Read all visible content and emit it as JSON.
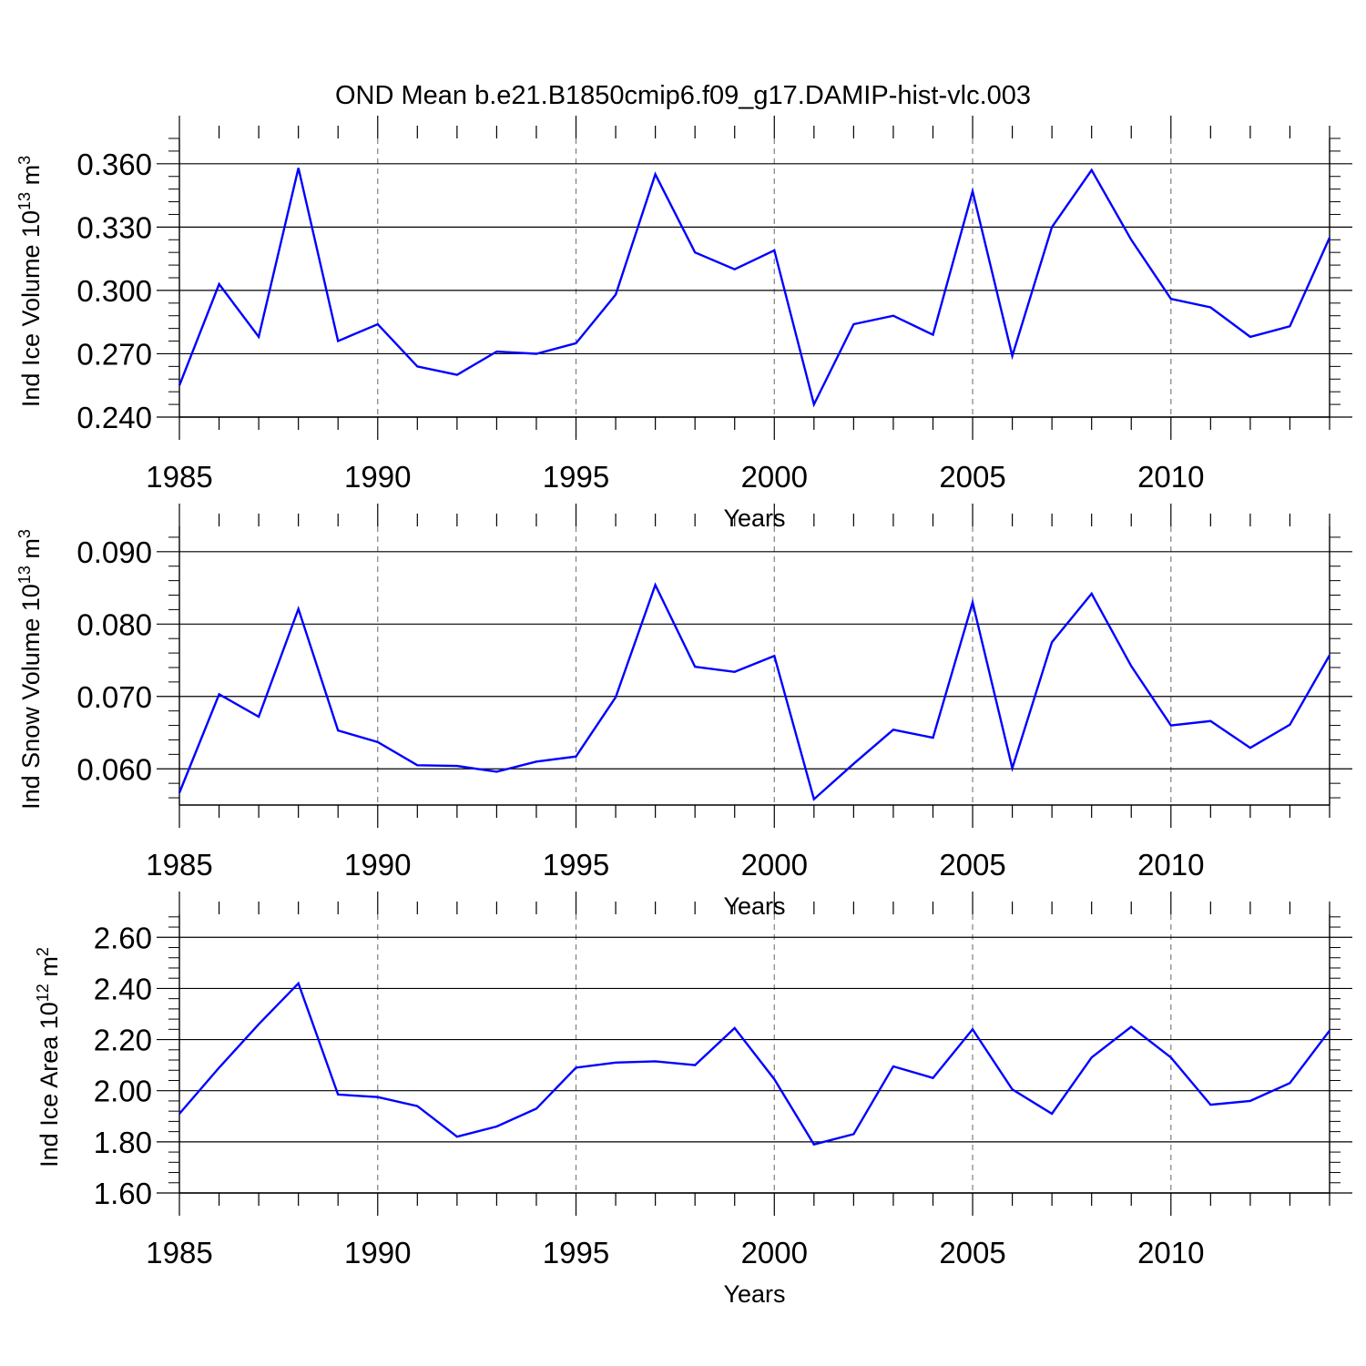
{
  "title": "OND Mean b.e21.B1850cmip6.f09_g17.DAMIP-hist-vlc.003",
  "colors": {
    "line": "#0000ff",
    "axis": "#000000",
    "grid": "#7f7f7f"
  },
  "chart_data": [
    {
      "type": "line",
      "title": "OND Mean b.e21.B1850cmip6.f09_g17.DAMIP-hist-vlc.003",
      "xlabel": "Years",
      "ylabel_main": "Ind Ice Volume 10",
      "ylabel_exp": "13",
      "ylabel_unit": " m",
      "ylabel_unit_exp": "3",
      "xlim": [
        1985,
        2014
      ],
      "ylim": [
        0.24,
        0.372
      ],
      "x_ticks": [
        1985,
        1990,
        1995,
        2000,
        2005,
        2010
      ],
      "x_tick_labels": [
        "1985",
        "1990",
        "1995",
        "2000",
        "2005",
        "2010"
      ],
      "y_ticks": [
        0.24,
        0.27,
        0.3,
        0.33,
        0.36
      ],
      "y_tick_labels": [
        "0.240",
        "0.270",
        "0.300",
        "0.330",
        "0.360"
      ],
      "grid": "dashed vertical at major x ticks",
      "series": [
        {
          "name": "Ind Ice Volume",
          "x": [
            1985,
            1986,
            1987,
            1988,
            1989,
            1990,
            1991,
            1992,
            1993,
            1994,
            1995,
            1996,
            1997,
            1998,
            1999,
            2000,
            2001,
            2002,
            2003,
            2004,
            2005,
            2006,
            2007,
            2008,
            2009,
            2010,
            2011,
            2012,
            2013,
            2014
          ],
          "values": [
            0.255,
            0.303,
            0.278,
            0.358,
            0.276,
            0.284,
            0.264,
            0.26,
            0.271,
            0.27,
            0.275,
            0.298,
            0.355,
            0.318,
            0.31,
            0.319,
            0.246,
            0.284,
            0.288,
            0.279,
            0.347,
            0.269,
            0.33,
            0.357,
            0.324,
            0.296,
            0.292,
            0.278,
            0.283,
            0.325
          ]
        }
      ]
    },
    {
      "type": "line",
      "title": "",
      "xlabel": "Years",
      "ylabel_main": "Ind Snow Volume 10",
      "ylabel_exp": "13",
      "ylabel_unit": " m",
      "ylabel_unit_exp": "3",
      "xlim": [
        1985,
        2014
      ],
      "ylim": [
        0.055,
        0.0935
      ],
      "x_ticks": [
        1985,
        1990,
        1995,
        2000,
        2005,
        2010
      ],
      "x_tick_labels": [
        "1985",
        "1990",
        "1995",
        "2000",
        "2005",
        "2010"
      ],
      "y_ticks": [
        0.06,
        0.07,
        0.08,
        0.09
      ],
      "y_tick_labels": [
        "0.060",
        "0.070",
        "0.080",
        "0.090"
      ],
      "grid": "dashed vertical at major x ticks",
      "series": [
        {
          "name": "Ind Snow Volume",
          "x": [
            1985,
            1986,
            1987,
            1988,
            1989,
            1990,
            1991,
            1992,
            1993,
            1994,
            1995,
            1996,
            1997,
            1998,
            1999,
            2000,
            2001,
            2002,
            2003,
            2004,
            2005,
            2006,
            2007,
            2008,
            2009,
            2010,
            2011,
            2012,
            2013,
            2014
          ],
          "values": [
            0.0567,
            0.0703,
            0.0672,
            0.0821,
            0.0653,
            0.0637,
            0.0605,
            0.0604,
            0.0596,
            0.061,
            0.0617,
            0.0699,
            0.0854,
            0.0741,
            0.0734,
            0.0756,
            0.0558,
            0.0607,
            0.0654,
            0.0643,
            0.083,
            0.0601,
            0.0775,
            0.0842,
            0.0742,
            0.066,
            0.0666,
            0.0629,
            0.0661,
            0.0757
          ]
        }
      ]
    },
    {
      "type": "line",
      "title": "",
      "xlabel": "Years",
      "ylabel_main": "Ind Ice Area 10",
      "ylabel_exp": "12",
      "ylabel_unit": " m",
      "ylabel_unit_exp": "2",
      "xlim": [
        1985,
        2014
      ],
      "ylim": [
        1.6,
        2.69
      ],
      "x_ticks": [
        1985,
        1990,
        1995,
        2000,
        2005,
        2010
      ],
      "x_tick_labels": [
        "1985",
        "1990",
        "1995",
        "2000",
        "2005",
        "2010"
      ],
      "y_ticks": [
        1.6,
        1.8,
        2.0,
        2.2,
        2.4,
        2.6
      ],
      "y_tick_labels": [
        "1.60",
        "1.80",
        "2.00",
        "2.20",
        "2.40",
        "2.60"
      ],
      "grid": "dashed vertical at major x ticks",
      "series": [
        {
          "name": "Ind Ice Area",
          "x": [
            1985,
            1986,
            1987,
            1988,
            1989,
            1990,
            1991,
            1992,
            1993,
            1994,
            1995,
            1996,
            1997,
            1998,
            1999,
            2000,
            2001,
            2002,
            2003,
            2004,
            2005,
            2006,
            2007,
            2008,
            2009,
            2010,
            2011,
            2012,
            2013,
            2014
          ],
          "values": [
            1.91,
            2.09,
            2.26,
            2.42,
            1.985,
            1.975,
            1.94,
            1.82,
            1.86,
            1.93,
            2.09,
            2.11,
            2.115,
            2.1,
            2.245,
            2.045,
            1.79,
            1.83,
            2.095,
            2.05,
            2.24,
            2.005,
            1.91,
            2.13,
            2.25,
            2.13,
            1.945,
            1.96,
            2.03,
            2.235
          ]
        }
      ]
    }
  ]
}
